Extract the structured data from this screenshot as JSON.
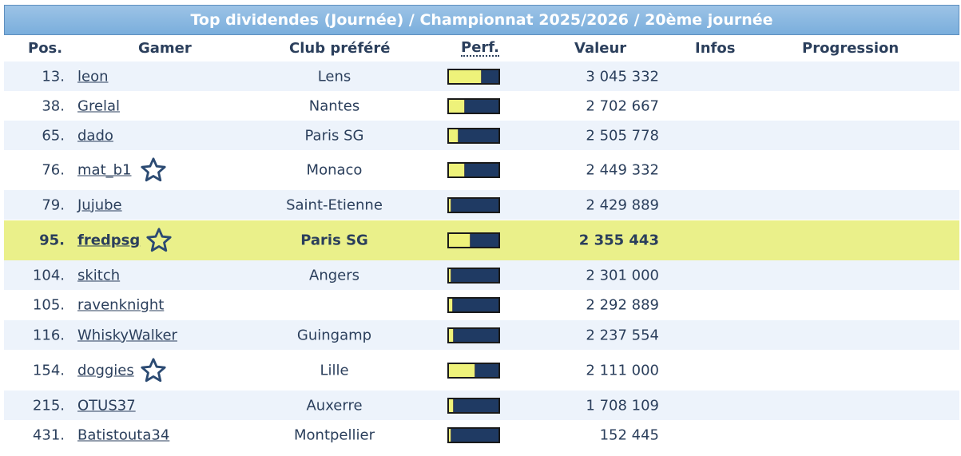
{
  "title": "Top dividendes (Journée) / Championnat 2025/2026 / 20ème journée",
  "columns": {
    "pos": "Pos.",
    "gamer": "Gamer",
    "club": "Club préféré",
    "perf": "Perf.",
    "valeur": "Valeur",
    "infos": "Infos",
    "progression": "Progression"
  },
  "colors": {
    "highlight": "#eaf08a",
    "alt_row": "#edf3fb",
    "bar_fill": "#eef27a",
    "bar_bg": "#1f3a63"
  },
  "rows": [
    {
      "pos": "13.",
      "gamer": "leon",
      "club": "Lens",
      "valeur": "3 045 332",
      "perf": 0.65,
      "star": false,
      "highlight": false
    },
    {
      "pos": "38.",
      "gamer": "Grelal",
      "club": "Nantes",
      "valeur": "2 702 667",
      "perf": 0.3,
      "star": false,
      "highlight": false
    },
    {
      "pos": "65.",
      "gamer": "dado",
      "club": "Paris SG",
      "valeur": "2 505 778",
      "perf": 0.18,
      "star": false,
      "highlight": false
    },
    {
      "pos": "76.",
      "gamer": "mat_b1",
      "club": "Monaco",
      "valeur": "2 449 332",
      "perf": 0.3,
      "star": true,
      "highlight": false
    },
    {
      "pos": "79.",
      "gamer": "Jujube",
      "club": "Saint-Etienne",
      "valeur": "2 429 889",
      "perf": 0.04,
      "star": false,
      "highlight": false
    },
    {
      "pos": "95.",
      "gamer": "fredpsg",
      "club": "Paris SG",
      "valeur": "2 355 443",
      "perf": 0.42,
      "star": true,
      "highlight": true
    },
    {
      "pos": "104.",
      "gamer": "skitch",
      "club": "Angers",
      "valeur": "2 301 000",
      "perf": 0.04,
      "star": false,
      "highlight": false
    },
    {
      "pos": "105.",
      "gamer": "ravenknight",
      "club": "",
      "valeur": "2 292 889",
      "perf": 0.06,
      "star": false,
      "highlight": false
    },
    {
      "pos": "116.",
      "gamer": "WhiskyWalker",
      "club": "Guingamp",
      "valeur": "2 237 554",
      "perf": 0.08,
      "star": false,
      "highlight": false
    },
    {
      "pos": "154.",
      "gamer": "doggies",
      "club": "Lille",
      "valeur": "2 111 000",
      "perf": 0.52,
      "star": true,
      "highlight": false
    },
    {
      "pos": "215.",
      "gamer": "OTUS37",
      "club": "Auxerre",
      "valeur": "1 708 109",
      "perf": 0.08,
      "star": false,
      "highlight": false
    },
    {
      "pos": "431.",
      "gamer": "Batistouta34",
      "club": "Montpellier",
      "valeur": "152 445",
      "perf": 0.03,
      "star": false,
      "highlight": false
    }
  ]
}
